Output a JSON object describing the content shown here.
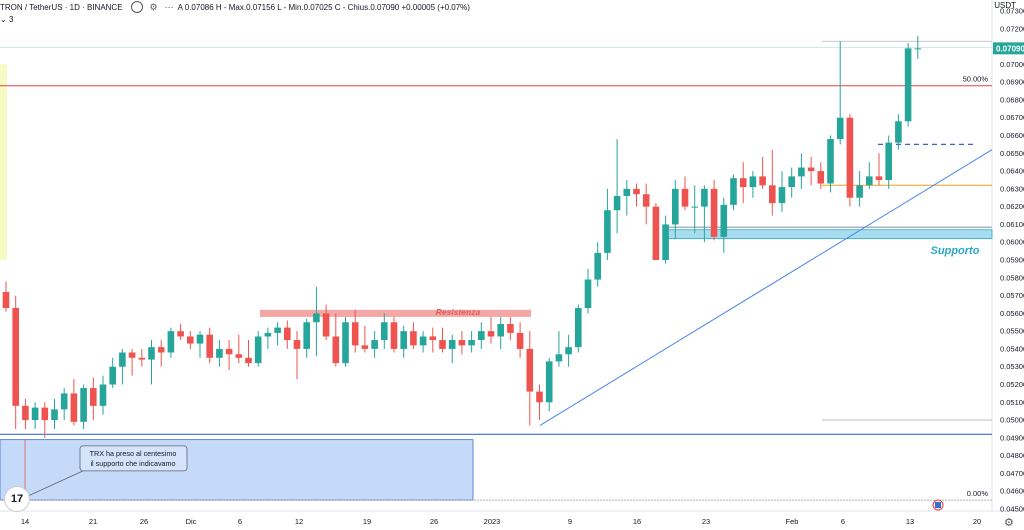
{
  "header": {
    "symbol": "TRON / TetherUS · 1D · BINANCE",
    "ohlc": "A 0.07086  H - Max.0.07156  L - Min.0.07025  C - Chius.0.07090  +0.00005 (+0.07%)",
    "count": "3",
    "currency": "USDT"
  },
  "colors": {
    "up": "#26a69a",
    "down": "#ef5350",
    "resistance_fill": "#f4a7a7",
    "support_fill": "#a8dcef",
    "support_label": "#29a9c8",
    "blue_zone": "#c5d9f8",
    "blue_line": "#3d6fc9",
    "red_line": "#e0444a",
    "orange_line": "#f2a11b",
    "trend_line": "#4a86e8"
  },
  "annotations": {
    "resistance": "Resistenza",
    "support": "Supporto",
    "note_line1": "TRX ha preso al centesimo",
    "note_line2": "il supporto che indicavamo",
    "fib_50": "50.00%",
    "fib_0": "0.00%"
  },
  "chart_data": {
    "type": "candlestick",
    "title": "TRON / TetherUS · 1D · BINANCE",
    "y_axis_ticks": [
      "0.07300",
      "0.07200",
      "0.07100",
      "0.07000",
      "0.06900",
      "0.06800",
      "0.06700",
      "0.06600",
      "0.06500",
      "0.06400",
      "0.06300",
      "0.06200",
      "0.06100",
      "0.06000",
      "0.05900",
      "0.05800",
      "0.05700",
      "0.05600",
      "0.05500",
      "0.05400",
      "0.05300",
      "0.05200",
      "0.05100",
      "0.05000",
      "0.04900",
      "0.04800",
      "0.04700",
      "0.04600",
      "0.04500"
    ],
    "ylim": [
      0.045,
      0.073
    ],
    "x_axis_ticks": [
      "14",
      "21",
      "26",
      "Dic",
      "6",
      "12",
      "19",
      "26",
      "2023",
      "9",
      "16",
      "23",
      "Feb",
      "6",
      "13",
      "20"
    ],
    "current_price": "0.07090",
    "resistance_zone": [
      0.0558,
      0.0562
    ],
    "support_zone": [
      0.0602,
      0.0607
    ],
    "horizontal_levels": {
      "fib_50": 0.0688,
      "fib_0": 0.0455,
      "blue_support": 0.0492,
      "orange": 0.0632,
      "gray_top": 0.0713
    },
    "ohlc": [
      [
        0.0572,
        0.0578,
        0.0561,
        0.0563
      ],
      [
        0.0563,
        0.057,
        0.0495,
        0.0508
      ],
      [
        0.0508,
        0.0512,
        0.0495,
        0.05
      ],
      [
        0.05,
        0.051,
        0.0495,
        0.0507
      ],
      [
        0.0507,
        0.051,
        0.049,
        0.05
      ],
      [
        0.05,
        0.0512,
        0.0495,
        0.0506
      ],
      [
        0.0506,
        0.0518,
        0.05,
        0.0515
      ],
      [
        0.0515,
        0.0523,
        0.0497,
        0.0499
      ],
      [
        0.0499,
        0.052,
        0.0495,
        0.0518
      ],
      [
        0.0518,
        0.0524,
        0.05,
        0.0508
      ],
      [
        0.0508,
        0.0525,
        0.0503,
        0.052
      ],
      [
        0.052,
        0.0535,
        0.0518,
        0.053
      ],
      [
        0.053,
        0.054,
        0.052,
        0.0538
      ],
      [
        0.0538,
        0.054,
        0.0525,
        0.0535
      ],
      [
        0.0535,
        0.054,
        0.053,
        0.0534
      ],
      [
        0.0534,
        0.0545,
        0.052,
        0.0541
      ],
      [
        0.0541,
        0.0545,
        0.053,
        0.0538
      ],
      [
        0.0538,
        0.0552,
        0.0535,
        0.055
      ],
      [
        0.055,
        0.0554,
        0.0545,
        0.0547
      ],
      [
        0.0547,
        0.055,
        0.054,
        0.0543
      ],
      [
        0.0543,
        0.055,
        0.0535,
        0.0548
      ],
      [
        0.0548,
        0.0552,
        0.0532,
        0.0535
      ],
      [
        0.0535,
        0.0545,
        0.053,
        0.054
      ],
      [
        0.054,
        0.0545,
        0.0528,
        0.0537
      ],
      [
        0.0537,
        0.0548,
        0.0532,
        0.0535
      ],
      [
        0.0535,
        0.0545,
        0.053,
        0.0532
      ],
      [
        0.0532,
        0.055,
        0.053,
        0.0547
      ],
      [
        0.0547,
        0.0552,
        0.054,
        0.0549
      ],
      [
        0.0549,
        0.0555,
        0.0542,
        0.0552
      ],
      [
        0.0552,
        0.0556,
        0.054,
        0.0545
      ],
      [
        0.0545,
        0.055,
        0.0523,
        0.054
      ],
      [
        0.054,
        0.0557,
        0.0535,
        0.0555
      ],
      [
        0.0555,
        0.0575,
        0.0536,
        0.056
      ],
      [
        0.056,
        0.0565,
        0.0545,
        0.0547
      ],
      [
        0.0547,
        0.056,
        0.053,
        0.0532
      ],
      [
        0.0532,
        0.0558,
        0.053,
        0.0555
      ],
      [
        0.0555,
        0.0562,
        0.0538,
        0.0542
      ],
      [
        0.0542,
        0.0553,
        0.0538,
        0.054
      ],
      [
        0.054,
        0.055,
        0.0535,
        0.0545
      ],
      [
        0.0545,
        0.056,
        0.054,
        0.0555
      ],
      [
        0.0555,
        0.0558,
        0.0538,
        0.054
      ],
      [
        0.054,
        0.0553,
        0.0535,
        0.055
      ],
      [
        0.055,
        0.0555,
        0.054,
        0.0542
      ],
      [
        0.0542,
        0.055,
        0.0538,
        0.0547
      ],
      [
        0.0547,
        0.0552,
        0.0538,
        0.0545
      ],
      [
        0.0545,
        0.0552,
        0.0538,
        0.054
      ],
      [
        0.054,
        0.0548,
        0.0532,
        0.0545
      ],
      [
        0.0545,
        0.055,
        0.0537,
        0.0542
      ],
      [
        0.0542,
        0.055,
        0.0538,
        0.0545
      ],
      [
        0.0545,
        0.0555,
        0.054,
        0.055
      ],
      [
        0.055,
        0.0558,
        0.0543,
        0.0547
      ],
      [
        0.0547,
        0.0558,
        0.054,
        0.0554
      ],
      [
        0.0554,
        0.0558,
        0.0545,
        0.0549
      ],
      [
        0.0549,
        0.0555,
        0.0535,
        0.054
      ],
      [
        0.054,
        0.055,
        0.0497,
        0.0516
      ],
      [
        0.0516,
        0.052,
        0.05,
        0.051
      ],
      [
        0.051,
        0.0535,
        0.0505,
        0.0533
      ],
      [
        0.0533,
        0.055,
        0.053,
        0.0537
      ],
      [
        0.0537,
        0.0548,
        0.053,
        0.0541
      ],
      [
        0.0541,
        0.0565,
        0.0538,
        0.0563
      ],
      [
        0.0563,
        0.0585,
        0.056,
        0.0579
      ],
      [
        0.0579,
        0.06,
        0.0575,
        0.0594
      ],
      [
        0.0594,
        0.063,
        0.059,
        0.0618
      ],
      [
        0.0618,
        0.0658,
        0.0605,
        0.0626
      ],
      [
        0.0626,
        0.0635,
        0.0615,
        0.063
      ],
      [
        0.063,
        0.0633,
        0.062,
        0.0627
      ],
      [
        0.0627,
        0.0633,
        0.061,
        0.062
      ],
      [
        0.062,
        0.0622,
        0.059,
        0.059
      ],
      [
        0.059,
        0.0615,
        0.0588,
        0.061
      ],
      [
        0.061,
        0.0635,
        0.0602,
        0.063
      ],
      [
        0.063,
        0.0637,
        0.0618,
        0.062
      ],
      [
        0.062,
        0.0632,
        0.0605,
        0.062
      ],
      [
        0.062,
        0.0632,
        0.06,
        0.063
      ],
      [
        0.063,
        0.0635,
        0.0601,
        0.0603
      ],
      [
        0.0603,
        0.0625,
        0.0594,
        0.0621
      ],
      [
        0.0621,
        0.0638,
        0.0618,
        0.0636
      ],
      [
        0.0636,
        0.0645,
        0.0622,
        0.0631
      ],
      [
        0.0631,
        0.064,
        0.0625,
        0.0637
      ],
      [
        0.0637,
        0.0648,
        0.063,
        0.0632
      ],
      [
        0.0632,
        0.0652,
        0.0615,
        0.0622
      ],
      [
        0.0622,
        0.064,
        0.0617,
        0.0631
      ],
      [
        0.0631,
        0.0642,
        0.0625,
        0.0637
      ],
      [
        0.0637,
        0.065,
        0.063,
        0.0642
      ],
      [
        0.0642,
        0.0648,
        0.0632,
        0.064
      ],
      [
        0.064,
        0.0645,
        0.063,
        0.0633
      ],
      [
        0.0633,
        0.066,
        0.0628,
        0.0658
      ],
      [
        0.0658,
        0.0713,
        0.0655,
        0.067
      ],
      [
        0.067,
        0.0672,
        0.062,
        0.0625
      ],
      [
        0.0625,
        0.064,
        0.062,
        0.0632
      ],
      [
        0.0632,
        0.0645,
        0.063,
        0.0637
      ],
      [
        0.0637,
        0.065,
        0.0632,
        0.0635
      ],
      [
        0.0635,
        0.066,
        0.063,
        0.0656
      ],
      [
        0.0656,
        0.0672,
        0.0652,
        0.0668
      ],
      [
        0.0668,
        0.0712,
        0.0665,
        0.0709
      ],
      [
        0.0709,
        0.0716,
        0.0703,
        0.0709
      ]
    ]
  }
}
